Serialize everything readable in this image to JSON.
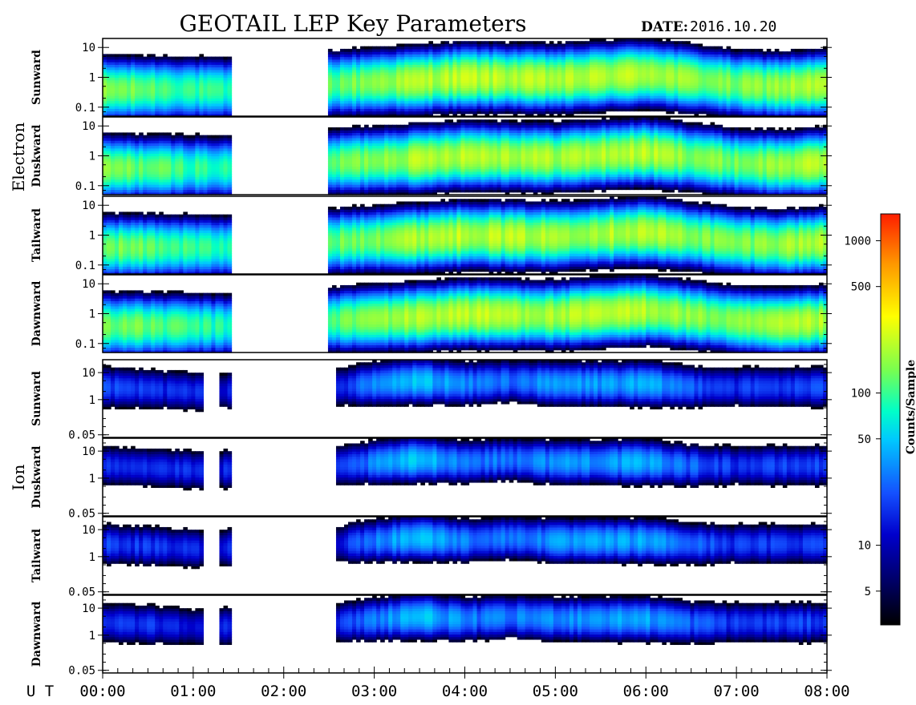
{
  "title": "GEOTAIL LEP Key Parameters",
  "date_label": "DATE:",
  "date_value": "2016.10.20",
  "ut_label": "U T",
  "colors": {
    "background": "#ffffff",
    "frame": "#000000",
    "colormap": [
      "#000000",
      "#000060",
      "#0000cc",
      "#1450ff",
      "#00c8ff",
      "#00ffc8",
      "#78ff50",
      "#ffff00",
      "#ff9600",
      "#ff1e00"
    ]
  },
  "groups": [
    {
      "name": "Electron",
      "panels": [
        {
          "label": "Sunward",
          "y_ticks": [
            "10",
            "1",
            "0.1"
          ]
        },
        {
          "label": "Duskward",
          "y_ticks": [
            "10",
            "1",
            "0.1"
          ]
        },
        {
          "label": "Tailward",
          "y_ticks": [
            "10",
            "1",
            "0.1"
          ]
        },
        {
          "label": "Dawnward",
          "y_ticks": [
            "10",
            "1",
            "0.1"
          ]
        }
      ]
    },
    {
      "name": "Ion",
      "panels": [
        {
          "label": "Sunward",
          "y_ticks": [
            "10",
            "1",
            "0.05"
          ]
        },
        {
          "label": "Duskward",
          "y_ticks": [
            "10",
            "1",
            "0.05"
          ]
        },
        {
          "label": "Tailward",
          "y_ticks": [
            "10",
            "1",
            "0.05"
          ]
        },
        {
          "label": "Dawnward",
          "y_ticks": [
            "10",
            "1",
            "0.05"
          ]
        }
      ]
    }
  ],
  "chart_data": {
    "type": "heatmap",
    "title": "GEOTAIL LEP Key Parameters",
    "date": "2016.10.20",
    "x_axis": {
      "label": "U T",
      "range_hours": [
        0,
        8
      ],
      "tick_labels": [
        "00:00",
        "01:00",
        "02:00",
        "03:00",
        "04:00",
        "05:00",
        "06:00",
        "07:00",
        "08:00"
      ]
    },
    "data_gap_hours": [
      1.43,
      2.47
    ],
    "y_scale": "log",
    "electron_y_range": [
      0.05,
      20
    ],
    "ion_y_range": [
      0.04,
      30
    ],
    "colorbar": {
      "label": "Counts/Sample",
      "scale": "log",
      "range": [
        3,
        1500
      ],
      "ticks": [
        5,
        10,
        50,
        100,
        500,
        1000
      ],
      "tick_labels": [
        "5",
        "10",
        "50",
        "100",
        "500",
        "1000"
      ]
    },
    "electron_band": {
      "x": [
        0,
        1.4,
        2.5,
        3.5,
        4.0,
        5.0,
        6.0,
        6.5,
        7.0,
        7.5,
        8.0
      ],
      "peak_energy": [
        0.4,
        0.4,
        0.6,
        0.8,
        1.0,
        0.9,
        1.3,
        0.9,
        0.6,
        0.5,
        0.6
      ],
      "peak_counts": [
        150,
        80,
        120,
        200,
        220,
        190,
        210,
        160,
        140,
        180,
        200
      ]
    },
    "ion_band": {
      "x": [
        0,
        1.1,
        2.6,
        3.5,
        4.0,
        4.5,
        5.0,
        6.0,
        6.5,
        7.0,
        8.0
      ],
      "peak_energy": [
        3,
        2,
        3,
        5,
        4,
        5,
        4,
        4,
        3,
        3,
        3
      ],
      "peak_counts": [
        20,
        15,
        15,
        50,
        30,
        28,
        35,
        40,
        25,
        18,
        20
      ]
    }
  }
}
